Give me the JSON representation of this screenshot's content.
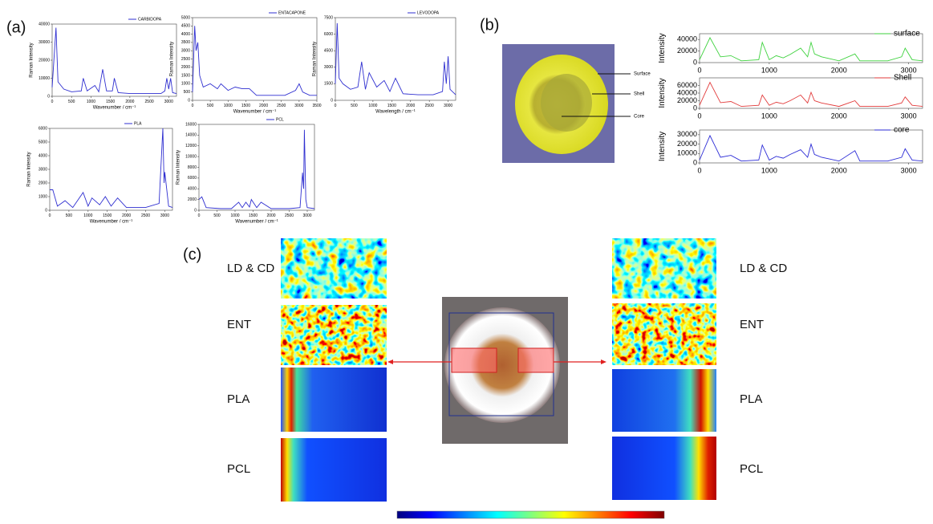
{
  "panel_labels": [
    "(a)",
    "(b)",
    "(c)"
  ],
  "photo_labels": [
    "Surface",
    "Shell",
    "Core"
  ],
  "map_labels": [
    "LD & CD",
    "ENT",
    "PLA",
    "PCL"
  ],
  "chart_data": [
    {
      "type": "line",
      "xlabel": "Wavenumber / cm⁻¹",
      "ylabel": "Raman Intensity",
      "xlim": [
        0,
        3200
      ],
      "ylim": [
        0,
        40000
      ],
      "xticks": [
        0,
        500,
        1000,
        1500,
        2000,
        2500,
        3000
      ],
      "yticks": [
        0,
        10000,
        20000,
        30000,
        40000
      ],
      "x": [
        0,
        100,
        150,
        300,
        500,
        750,
        800,
        900,
        1100,
        1200,
        1300,
        1400,
        1550,
        1600,
        1700,
        2000,
        2500,
        2800,
        2900,
        2950,
        3000,
        3050,
        3100,
        3200
      ],
      "series": [
        {
          "name": "CARBIDOPA",
          "color": "#2f2fd0",
          "values": [
            5000,
            38000,
            8000,
            4000,
            2500,
            3000,
            10000,
            3000,
            6000,
            2500,
            15000,
            3000,
            3000,
            10000,
            2000,
            1500,
            1500,
            1500,
            3000,
            10000,
            4000,
            10000,
            2000,
            1500
          ]
        }
      ]
    },
    {
      "type": "line",
      "xlabel": "Wavenumber / cm⁻¹",
      "ylabel": "Raman Intensity",
      "xlim": [
        0,
        3500
      ],
      "ylim": [
        0,
        5000
      ],
      "xticks": [
        0,
        500,
        1000,
        1500,
        2000,
        2500,
        3000,
        3500
      ],
      "yticks": [
        0,
        500,
        1000,
        1500,
        2000,
        2500,
        3000,
        3500,
        4000,
        4500,
        5000
      ],
      "x": [
        0,
        60,
        100,
        150,
        200,
        300,
        500,
        700,
        800,
        1000,
        1200,
        1400,
        1600,
        1800,
        2200,
        2600,
        2900,
        3000,
        3100,
        3300,
        3500
      ],
      "series": [
        {
          "name": "ENTACAPONE",
          "color": "#2f2fd0",
          "values": [
            500,
            4500,
            3000,
            3500,
            1500,
            800,
            1000,
            700,
            1000,
            600,
            800,
            700,
            700,
            300,
            300,
            300,
            600,
            1000,
            500,
            300,
            300
          ]
        }
      ]
    },
    {
      "type": "line",
      "xlabel": "Wavelength / cm⁻¹",
      "ylabel": "Raman Intensity",
      "xlim": [
        0,
        3200
      ],
      "ylim": [
        0,
        7500
      ],
      "xticks": [
        0,
        500,
        1000,
        1500,
        2000,
        2500,
        3000
      ],
      "yticks": [
        0,
        1500,
        3000,
        4500,
        6000,
        7500
      ],
      "x": [
        0,
        50,
        100,
        200,
        400,
        600,
        700,
        800,
        900,
        1100,
        1300,
        1450,
        1600,
        1800,
        2200,
        2600,
        2850,
        2900,
        2950,
        3000,
        3050,
        3200
      ],
      "series": [
        {
          "name": "LEVODOPA",
          "color": "#2f2fd0",
          "values": [
            1500,
            7000,
            2000,
            1500,
            1000,
            1200,
            3500,
            1000,
            2500,
            1200,
            1800,
            800,
            2000,
            600,
            500,
            500,
            800,
            3500,
            1500,
            4000,
            1000,
            500
          ]
        }
      ]
    },
    {
      "type": "line",
      "xlabel": "Wavenumber / cm⁻¹",
      "ylabel": "Raman Intensity",
      "xlim": [
        0,
        3200
      ],
      "ylim": [
        0,
        6000
      ],
      "xticks": [
        0,
        500,
        1000,
        1500,
        2000,
        2500,
        3000
      ],
      "yticks": [
        0,
        1000,
        2000,
        3000,
        4000,
        5000,
        6000
      ],
      "x": [
        0,
        80,
        200,
        400,
        600,
        870,
        1000,
        1100,
        1300,
        1450,
        1600,
        1770,
        2000,
        2500,
        2850,
        2950,
        2980,
        3000,
        3100,
        3200
      ],
      "series": [
        {
          "name": "PLA",
          "color": "#2f2fd0",
          "values": [
            1500,
            1500,
            300,
            700,
            200,
            1300,
            300,
            900,
            400,
            1000,
            300,
            900,
            200,
            200,
            500,
            6000,
            2000,
            2800,
            300,
            200
          ]
        }
      ]
    },
    {
      "type": "line",
      "xlabel": "Wavenumber / cm⁻¹",
      "ylabel": "Raman Intensity",
      "xlim": [
        0,
        3200
      ],
      "ylim": [
        0,
        16000
      ],
      "xticks": [
        0,
        500,
        1000,
        1500,
        2000,
        2500,
        3000
      ],
      "yticks": [
        0,
        2000,
        4000,
        6000,
        8000,
        10000,
        12000,
        14000,
        16000
      ],
      "x": [
        0,
        80,
        200,
        600,
        900,
        1100,
        1200,
        1300,
        1400,
        1450,
        1600,
        1720,
        2000,
        2500,
        2800,
        2870,
        2900,
        2920,
        2960,
        3000,
        3200
      ],
      "series": [
        {
          "name": "PCL",
          "color": "#2f2fd0",
          "values": [
            2000,
            2500,
            500,
            300,
            300,
            1500,
            500,
            1500,
            600,
            2000,
            500,
            1500,
            300,
            300,
            500,
            7000,
            4000,
            15000,
            2000,
            500,
            300
          ]
        }
      ]
    },
    {
      "type": "line",
      "ylabel": "Intensity",
      "xlim": [
        0,
        3200
      ],
      "ylim": [
        0,
        50000
      ],
      "xticks": [
        0,
        1000,
        2000,
        3000
      ],
      "yticks": [
        0,
        20000,
        40000
      ],
      "x": [
        0,
        150,
        300,
        450,
        600,
        850,
        900,
        1000,
        1100,
        1200,
        1300,
        1450,
        1550,
        1600,
        1650,
        1750,
        2000,
        2230,
        2300,
        2700,
        2900,
        2950,
        3050,
        3200
      ],
      "series": [
        {
          "name": "surface",
          "color": "#3ed23e",
          "values": [
            5000,
            43000,
            10000,
            12000,
            3000,
            5000,
            35000,
            5000,
            12000,
            8000,
            14000,
            25000,
            10000,
            35000,
            15000,
            10000,
            3000,
            15000,
            3000,
            3000,
            10000,
            25000,
            5000,
            3000
          ]
        }
      ]
    },
    {
      "type": "line",
      "ylabel": "Intensity",
      "xlim": [
        0,
        3200
      ],
      "ylim": [
        0,
        80000
      ],
      "xticks": [
        0,
        1000,
        2000,
        3000
      ],
      "yticks": [
        0,
        20000,
        40000,
        60000
      ],
      "x": [
        0,
        150,
        300,
        450,
        600,
        850,
        900,
        1000,
        1100,
        1200,
        1300,
        1450,
        1550,
        1600,
        1650,
        1750,
        2000,
        2230,
        2300,
        2700,
        2900,
        2950,
        3050,
        3200
      ],
      "series": [
        {
          "name": "Shell",
          "color": "#e23b3b",
          "values": [
            8000,
            68000,
            15000,
            18000,
            5000,
            8000,
            35000,
            8000,
            16000,
            12000,
            20000,
            35000,
            14000,
            42000,
            20000,
            14000,
            5000,
            20000,
            5000,
            5000,
            14000,
            30000,
            8000,
            5000
          ]
        }
      ]
    },
    {
      "type": "line",
      "ylabel": "Intensity",
      "xlim": [
        0,
        3200
      ],
      "ylim": [
        0,
        35000
      ],
      "xticks": [
        0,
        1000,
        2000,
        3000
      ],
      "yticks": [
        0,
        10000,
        20000,
        30000
      ],
      "x": [
        0,
        150,
        300,
        450,
        600,
        850,
        900,
        1000,
        1100,
        1200,
        1300,
        1450,
        1550,
        1600,
        1650,
        1750,
        2000,
        2230,
        2300,
        2700,
        2900,
        2950,
        3050,
        3200
      ],
      "series": [
        {
          "name": "core",
          "color": "#2b2bd6",
          "values": [
            3000,
            29000,
            6000,
            8000,
            2000,
            3000,
            19000,
            3000,
            7000,
            5000,
            9000,
            14000,
            6000,
            20000,
            9000,
            6000,
            2000,
            13000,
            2000,
            2000,
            6000,
            15000,
            3000,
            2000
          ]
        }
      ]
    }
  ]
}
